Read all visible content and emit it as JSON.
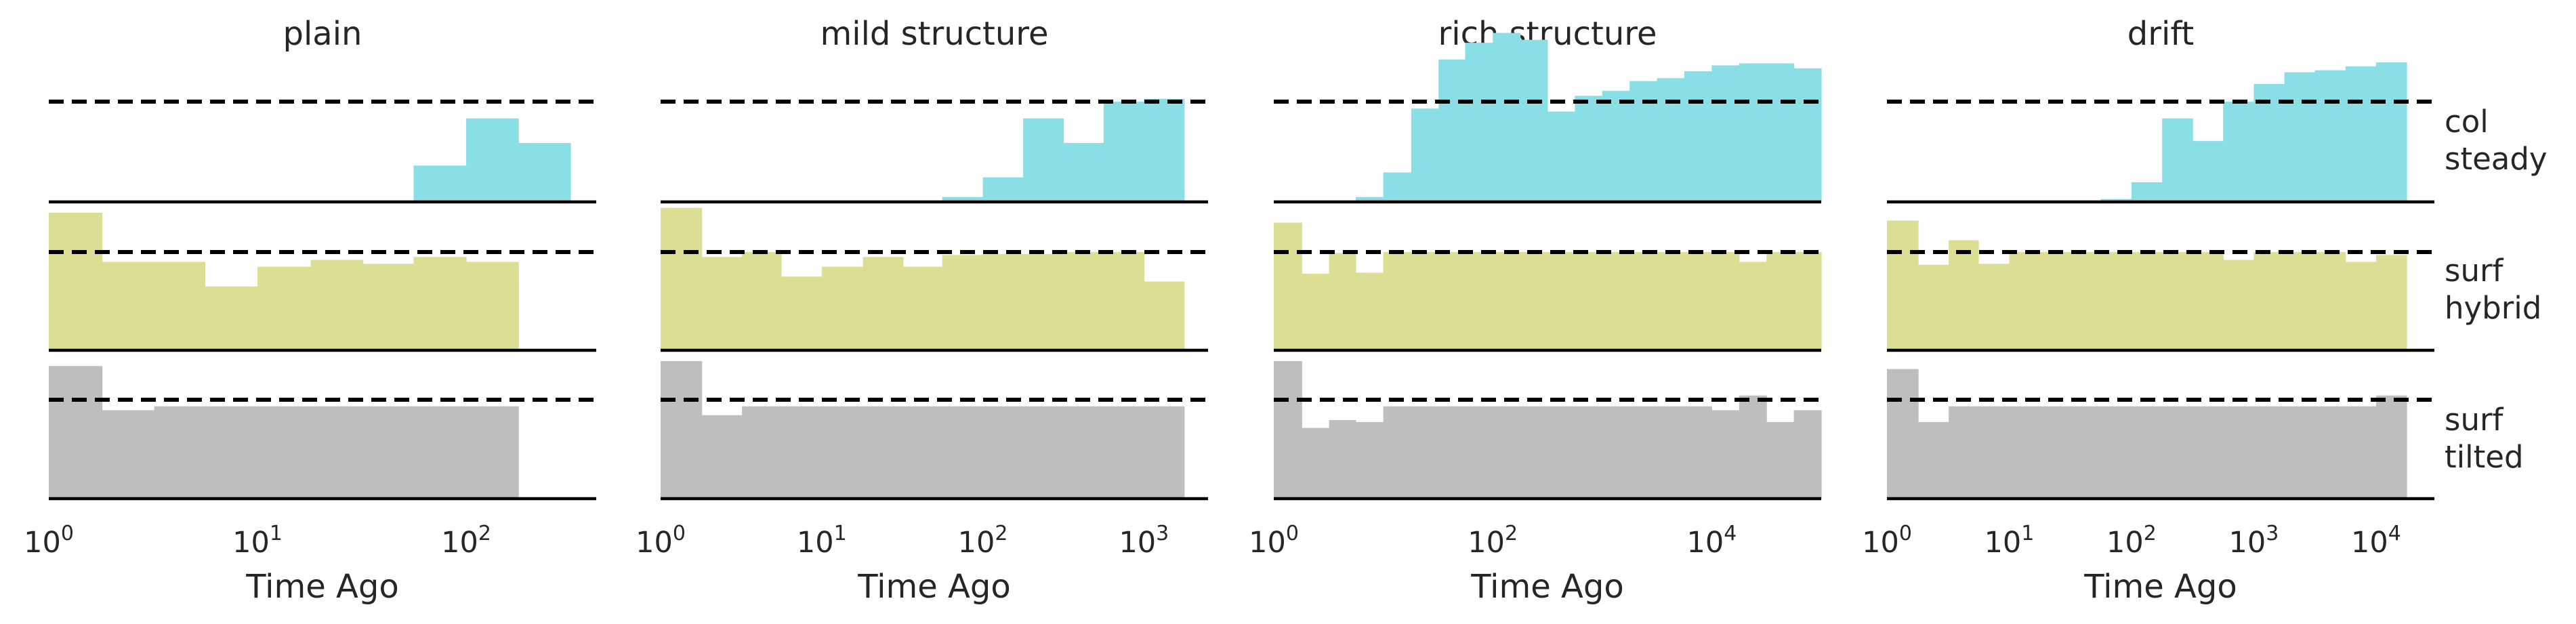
{
  "chart_data": {
    "type": "bar",
    "x_scale": "log",
    "xlabel": "Time Ago",
    "reference_line": "dashed",
    "row_colors": [
      "#8ADFE6",
      "#DCDE93",
      "#BEBEBE"
    ],
    "rows": [
      {
        "label_line1": "col",
        "label_line2": "steady"
      },
      {
        "label_line1": "surf",
        "label_line2": "hybrid"
      },
      {
        "label_line1": "surf",
        "label_line2": "tilted"
      }
    ],
    "panels": [
      {
        "title": "plain",
        "xlim": [
          1,
          420
        ],
        "ticks": [
          {
            "base": "10",
            "exp": "0"
          },
          {
            "base": "10",
            "exp": "1"
          },
          {
            "base": "10",
            "exp": "2"
          }
        ],
        "edges": [
          1,
          1.8,
          3.2,
          5.6,
          10,
          18,
          32,
          56,
          100,
          178,
          316
        ],
        "series": [
          [
            0,
            0,
            0,
            0,
            0,
            0,
            0,
            0.37,
            0.85,
            0.6
          ],
          [
            1.4,
            0.9,
            0.9,
            0.65,
            0.85,
            0.92,
            0.88,
            0.95,
            0.9,
            0
          ],
          [
            1.35,
            0.9,
            0.94,
            0.94,
            0.94,
            0.94,
            0.94,
            0.94,
            0.94,
            0
          ]
        ]
      },
      {
        "title": "mild structure",
        "xlim": [
          1,
          2500
        ],
        "ticks": [
          {
            "base": "10",
            "exp": "0"
          },
          {
            "base": "10",
            "exp": "1"
          },
          {
            "base": "10",
            "exp": "2"
          },
          {
            "base": "10",
            "exp": "3"
          }
        ],
        "edges": [
          1,
          1.8,
          3.2,
          5.6,
          10,
          18,
          32,
          56,
          100,
          178,
          316,
          562,
          1000,
          1778
        ],
        "series": [
          [
            0,
            0,
            0,
            0,
            0,
            0,
            0,
            0.05,
            0.25,
            0.85,
            0.6,
            1.02,
            1.05,
            1.55
          ],
          [
            1.45,
            0.95,
            1.0,
            0.75,
            0.85,
            0.95,
            0.85,
            0.97,
            0.98,
            0.98,
            1.0,
            1.0,
            0.7,
            1.0
          ],
          [
            1.4,
            0.85,
            0.94,
            0.94,
            0.94,
            0.94,
            0.94,
            0.94,
            0.94,
            0.94,
            0.94,
            0.94,
            0.94,
            0.75
          ]
        ]
      },
      {
        "title": "rich structure",
        "xlim": [
          1,
          100000
        ],
        "ticks": [
          {
            "base": "10",
            "exp": "0"
          },
          {
            "base": "10",
            "exp": "2"
          },
          {
            "base": "10",
            "exp": "4"
          }
        ],
        "edges": [
          1,
          1.8,
          3.2,
          5.6,
          10,
          18,
          32,
          56,
          100,
          178,
          316,
          562,
          1000,
          1778,
          3162,
          5623,
          10000,
          17783,
          31623,
          56234,
          100000
        ],
        "series": [
          [
            0,
            0,
            0,
            0.05,
            0.3,
            0.95,
            1.45,
            1.62,
            1.72,
            1.65,
            0.92,
            1.08,
            1.13,
            1.23,
            1.26,
            1.33,
            1.39,
            1.41,
            1.41,
            1.36
          ],
          [
            1.3,
            0.78,
            0.99,
            0.79,
            1.0,
            1.0,
            1.0,
            1.0,
            1.0,
            1.0,
            1.0,
            1.0,
            1.0,
            1.0,
            1.0,
            1.0,
            1.0,
            0.9,
            1.0,
            1.0
          ],
          [
            1.4,
            0.72,
            0.8,
            0.78,
            0.94,
            0.94,
            0.94,
            0.94,
            0.94,
            0.94,
            0.94,
            0.94,
            0.94,
            0.94,
            0.94,
            0.94,
            0.9,
            1.05,
            0.78,
            0.9
          ]
        ]
      },
      {
        "title": "drift",
        "xlim": [
          1,
          30000
        ],
        "ticks": [
          {
            "base": "10",
            "exp": "0"
          },
          {
            "base": "10",
            "exp": "1"
          },
          {
            "base": "10",
            "exp": "2"
          },
          {
            "base": "10",
            "exp": "3"
          },
          {
            "base": "10",
            "exp": "4"
          }
        ],
        "edges": [
          1,
          1.8,
          3.2,
          5.6,
          10,
          18,
          32,
          56,
          100,
          178,
          316,
          562,
          1000,
          1778,
          3162,
          5623,
          10000,
          17783
        ],
        "series": [
          [
            0,
            0,
            0,
            0,
            0,
            0,
            0,
            0.03,
            0.2,
            0.85,
            0.62,
            1.02,
            1.2,
            1.32,
            1.34,
            1.38,
            1.42
          ],
          [
            1.32,
            0.87,
            1.12,
            0.88,
            1.0,
            1.0,
            1.0,
            1.0,
            1.0,
            1.0,
            1.0,
            0.92,
            1.0,
            1.0,
            1.0,
            0.9,
            0.97
          ],
          [
            1.32,
            0.78,
            0.94,
            0.94,
            0.94,
            0.94,
            0.94,
            0.94,
            0.94,
            0.94,
            0.94,
            0.94,
            0.94,
            0.94,
            0.94,
            0.94,
            1.05
          ]
        ]
      }
    ]
  }
}
